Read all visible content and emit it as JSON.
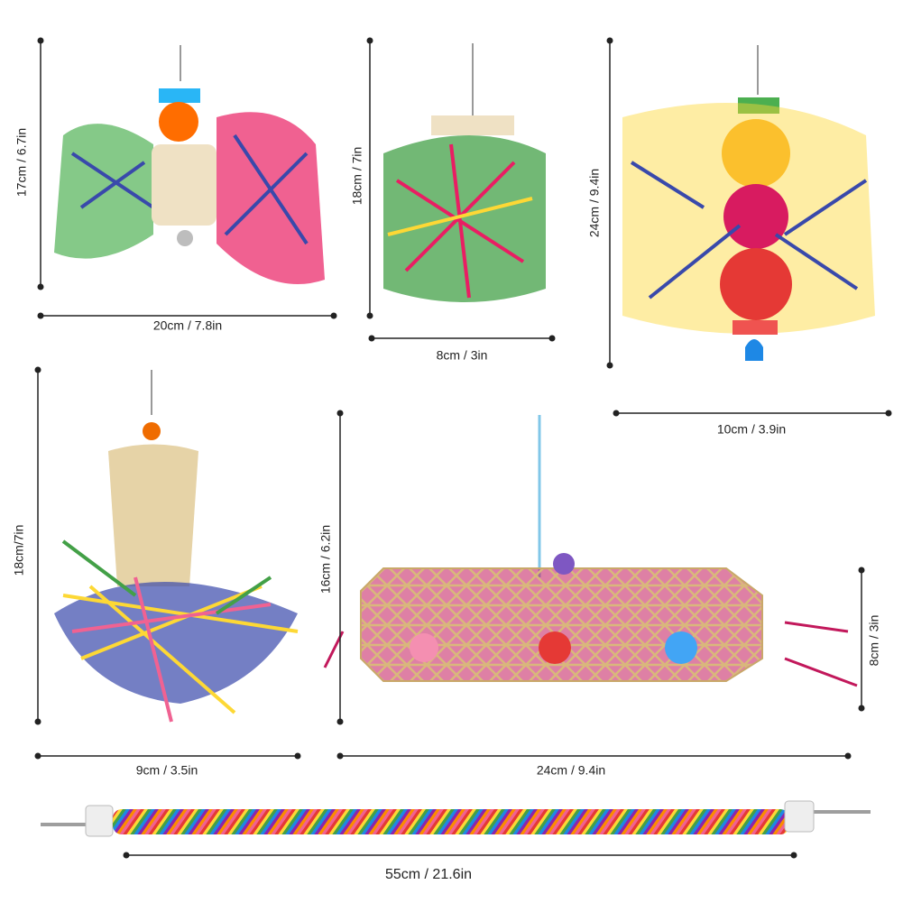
{
  "dimensions": [
    {
      "label": "17cm / 6.7in"
    },
    {
      "label": "20cm / 7.8in"
    },
    {
      "label": "18cm / 7in"
    },
    {
      "label": "8cm / 3in"
    },
    {
      "label": "24cm / 9.4in"
    },
    {
      "label": "10cm / 3.9in"
    },
    {
      "label": "18cm/7in"
    },
    {
      "label": "9cm / 3.5in"
    },
    {
      "label": "16cm / 6.2in"
    },
    {
      "label": "8cm / 3in"
    },
    {
      "label": "24cm / 9.4in"
    },
    {
      "label": "55cm / 21.6in"
    }
  ]
}
